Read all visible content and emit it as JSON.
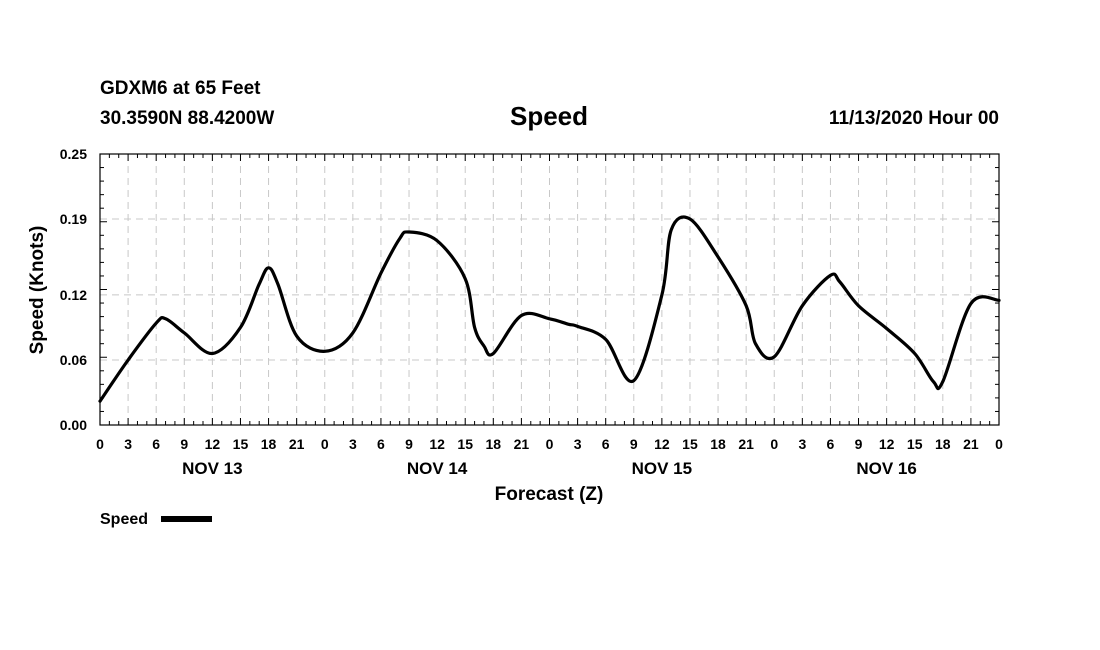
{
  "chart_data": {
    "type": "line",
    "station_line": "GDXM6 at 65 Feet",
    "location_line": "30.3590N 88.4200W",
    "title": "Speed",
    "datetime_line": "11/13/2020 Hour 00",
    "xlabel": "Forecast (Z)",
    "ylabel": "Speed (Knots)",
    "ylim": [
      0,
      0.25
    ],
    "xlim": [
      0,
      96
    ],
    "y_ticks": [
      0,
      0.06,
      0.12,
      0.19,
      0.25
    ],
    "y_tick_labels": [
      "0.00",
      "0.06",
      "0.12",
      "0.19",
      "0.25"
    ],
    "x_ticks": [
      0,
      3,
      6,
      9,
      12,
      15,
      18,
      21,
      24,
      27,
      30,
      33,
      36,
      39,
      42,
      45,
      48,
      51,
      54,
      57,
      60,
      63,
      66,
      69,
      72,
      75,
      78,
      81,
      84,
      87,
      90,
      93,
      96
    ],
    "x_tick_labels": [
      "0",
      "3",
      "6",
      "9",
      "12",
      "15",
      "18",
      "21",
      "0",
      "3",
      "6",
      "9",
      "12",
      "15",
      "18",
      "21",
      "0",
      "3",
      "6",
      "9",
      "12",
      "15",
      "18",
      "21",
      "0",
      "3",
      "6",
      "9",
      "12",
      "15",
      "18",
      "21",
      "0"
    ],
    "day_labels": [
      {
        "label": "NOV 13",
        "hour": 12
      },
      {
        "label": "NOV 14",
        "hour": 36
      },
      {
        "label": "NOV 15",
        "hour": 60
      },
      {
        "label": "NOV 16",
        "hour": 84
      }
    ],
    "grid": true,
    "legend": {
      "label": "Speed",
      "placement": "bottom-left"
    },
    "series": [
      {
        "name": "Speed",
        "color": "#000000",
        "x": [
          0,
          3,
          6,
          7,
          9,
          12,
          15,
          17,
          18,
          19,
          21,
          24,
          27,
          30,
          32,
          33,
          36,
          39,
          40,
          41,
          42,
          45,
          48,
          50,
          51,
          54,
          57,
          60,
          61,
          63,
          66,
          69,
          70,
          72,
          75,
          78,
          79,
          81,
          84,
          87,
          89,
          90,
          93,
          96
        ],
        "values": [
          0.022,
          0.06,
          0.094,
          0.098,
          0.085,
          0.066,
          0.09,
          0.13,
          0.145,
          0.13,
          0.082,
          0.068,
          0.085,
          0.14,
          0.172,
          0.178,
          0.17,
          0.135,
          0.09,
          0.073,
          0.066,
          0.101,
          0.098,
          0.093,
          0.091,
          0.079,
          0.041,
          0.12,
          0.18,
          0.19,
          0.155,
          0.11,
          0.075,
          0.063,
          0.11,
          0.138,
          0.132,
          0.11,
          0.089,
          0.066,
          0.04,
          0.04,
          0.112,
          0.115
        ]
      }
    ]
  }
}
